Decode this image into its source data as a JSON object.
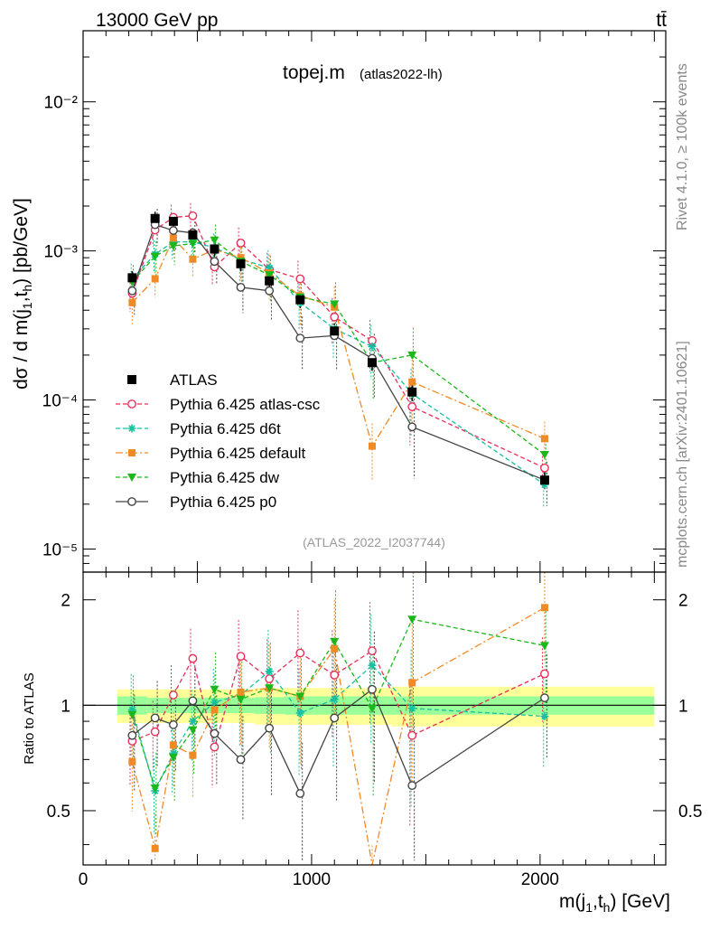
{
  "header": {
    "process": "13000 GeV pp",
    "channel": "tt̄",
    "side_text_1": "Rivet 4.1.0, ≥ 100k events",
    "side_text_2": "mcplots.cern.ch [arXiv:2401.10621]"
  },
  "chart_data": {
    "type": "scatter",
    "title": "topej.m",
    "subtitle": "(atlas2022-lh)",
    "analysis_tag": "(ATLAS_2022_I2037744)",
    "ylabel_main": "dσ / d m(j1,th) [pb/GeV]",
    "ylabel_ratio": "Ratio to ATLAS",
    "xlabel": "m(j1,th) [GeV]",
    "xlim": [
      0,
      2550
    ],
    "ylim_main": [
      7e-06,
      0.03
    ],
    "ylim_ratio": [
      0.35,
      2.4
    ],
    "x_ticks": [
      "0",
      "1000",
      "2000"
    ],
    "y_ticks_main": [
      "10⁻⁵",
      "10⁻⁴",
      "10⁻³",
      "10⁻²"
    ],
    "y_ticks_ratio": [
      "0.5",
      "1",
      "2"
    ],
    "x": [
      215,
      315,
      395,
      480,
      575,
      690,
      815,
      950,
      1100,
      1265,
      1440,
      2020
    ],
    "bin_edges": [
      150,
      280,
      350,
      440,
      520,
      630,
      750,
      880,
      1020,
      1180,
      1350,
      1530,
      2500
    ],
    "data": {
      "name": "ATLAS",
      "values": [
        0.00066,
        0.00165,
        0.00158,
        0.00128,
        0.00103,
        0.00082,
        0.00063,
        0.00047,
        0.00029,
        0.000178,
        0.000113,
        2.9e-05
      ],
      "band_inner": [
        0.06,
        0.05,
        0.05,
        0.05,
        0.05,
        0.05,
        0.055,
        0.06,
        0.06,
        0.06,
        0.06,
        0.06
      ],
      "band_outer": [
        0.11,
        0.11,
        0.11,
        0.11,
        0.11,
        0.11,
        0.12,
        0.12,
        0.12,
        0.12,
        0.13,
        0.13
      ]
    },
    "series": [
      {
        "name": "Pythia 6.425 atlas-csc",
        "color": "#e8305a",
        "marker": "circle-open",
        "line": "dash",
        "values": [
          0.00052,
          0.00138,
          0.00168,
          0.00172,
          0.00078,
          0.00113,
          0.00075,
          0.00065,
          0.00036,
          0.00025,
          9e-05,
          3.5e-05
        ],
        "ratio": [
          0.79,
          0.84,
          1.07,
          1.36,
          0.76,
          1.38,
          1.19,
          1.41,
          1.22,
          1.43,
          0.82,
          1.23
        ]
      },
      {
        "name": "Pythia 6.425 d6t",
        "color": "#17c0a0",
        "marker": "star",
        "line": "dash",
        "values": [
          0.00065,
          0.00095,
          0.00115,
          0.00115,
          0.00105,
          0.00088,
          0.00077,
          0.00045,
          0.0003,
          0.000228,
          0.00011,
          2.7e-05
        ],
        "ratio": [
          0.97,
          0.57,
          0.73,
          0.9,
          1.02,
          1.07,
          1.25,
          0.95,
          1.04,
          1.3,
          0.98,
          0.93
        ]
      },
      {
        "name": "Pythia 6.425 default",
        "color": "#f08a24",
        "marker": "square",
        "line": "dashdot",
        "values": [
          0.00045,
          0.00065,
          0.00122,
          0.00088,
          0.00102,
          0.0009,
          0.00071,
          0.0005,
          0.00042,
          4.9e-05,
          0.000132,
          5.5e-05
        ],
        "ratio": [
          0.69,
          0.39,
          0.77,
          0.72,
          0.97,
          1.09,
          1.12,
          1.06,
          1.45,
          0.28,
          1.16,
          1.9
        ]
      },
      {
        "name": "Pythia 6.425 dw",
        "color": "#1bb81b",
        "marker": "triangle-down",
        "line": "dash",
        "values": [
          0.00062,
          0.00092,
          0.00108,
          0.00112,
          0.00118,
          0.00085,
          0.00069,
          0.00049,
          0.00044,
          0.000178,
          0.0002,
          4.3e-05
        ],
        "ratio": [
          0.94,
          0.58,
          0.71,
          0.85,
          1.11,
          1.04,
          1.12,
          1.06,
          1.52,
          0.98,
          1.76,
          1.48
        ]
      },
      {
        "name": "Pythia 6.425 p0",
        "color": "#444444",
        "marker": "circle-open",
        "line": "solid",
        "values": [
          0.00054,
          0.0015,
          0.00137,
          0.00132,
          0.00085,
          0.00057,
          0.00054,
          0.00026,
          0.00027,
          0.00019,
          6.6e-05,
          2.9e-05
        ],
        "ratio": [
          0.82,
          0.92,
          0.88,
          1.03,
          0.83,
          0.7,
          0.86,
          0.56,
          0.92,
          1.11,
          0.59,
          1.05
        ]
      }
    ]
  }
}
